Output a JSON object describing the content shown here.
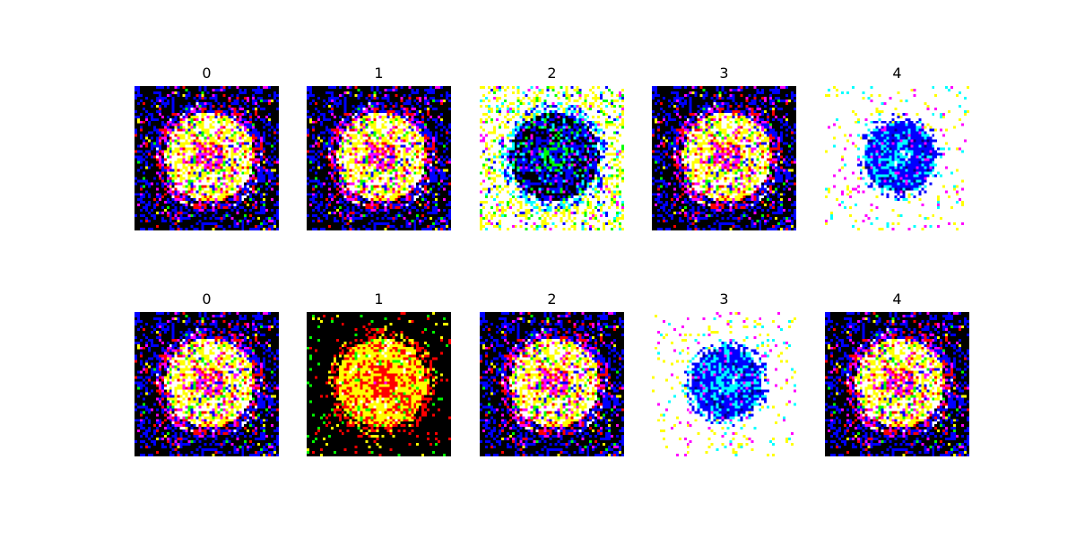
{
  "rows": [
    {
      "panels": [
        {
          "title": "0",
          "style": "normal"
        },
        {
          "title": "1",
          "style": "normal"
        },
        {
          "title": "2",
          "style": "inverted"
        },
        {
          "title": "3",
          "style": "normal"
        },
        {
          "title": "4",
          "style": "blue-on-white"
        }
      ]
    },
    {
      "panels": [
        {
          "title": "0",
          "style": "normal"
        },
        {
          "title": "1",
          "style": "red-yellow"
        },
        {
          "title": "2",
          "style": "normal"
        },
        {
          "title": "3",
          "style": "blue-on-white"
        },
        {
          "title": "4",
          "style": "normal"
        }
      ]
    }
  ],
  "colors": {
    "background": "#ffffff",
    "title": "#000000"
  }
}
